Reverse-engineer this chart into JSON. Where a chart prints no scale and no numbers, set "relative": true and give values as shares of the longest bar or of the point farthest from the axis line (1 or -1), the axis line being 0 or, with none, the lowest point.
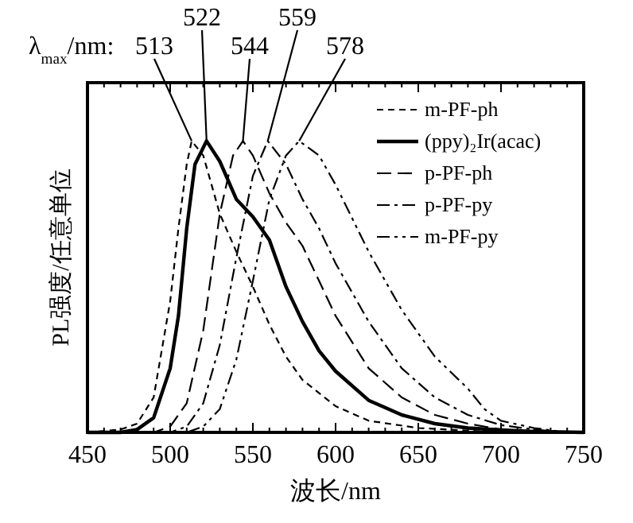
{
  "chart_data": {
    "type": "line",
    "relative": true,
    "xlabel": "波长/nm",
    "ylabel": "PL强度/任意单位",
    "xlim": [
      450,
      750
    ],
    "xticks": [
      450,
      500,
      550,
      600,
      650,
      700,
      750
    ],
    "legend": "top right",
    "annotations": [
      "λ$_{max}$/nm:",
      {
        "text": "513",
        "x": 513,
        "y": 1
      },
      {
        "text": "522",
        "x": 522,
        "y": 1
      },
      {
        "text": "544",
        "x": 544,
        "y": 1
      },
      {
        "text": "559",
        "x": 559,
        "y": 1
      },
      {
        "text": "578",
        "x": 578,
        "y": 1
      }
    ],
    "series": [
      {
        "name": "m-PF-ph",
        "color": "#000000",
        "line_style": "dashed",
        "x": [
          450,
          470,
          480,
          490,
          500,
          505,
          510,
          513,
          520,
          530,
          540,
          550,
          560,
          570,
          580,
          600,
          620,
          650,
          700,
          750
        ],
        "values": [
          0,
          0.01,
          0.03,
          0.12,
          0.45,
          0.7,
          0.92,
          1,
          0.95,
          0.75,
          0.62,
          0.5,
          0.37,
          0.26,
          0.18,
          0.09,
          0.04,
          0.015,
          0,
          0
        ]
      },
      {
        "name": "(ppy)₂Ir(acac)",
        "color": "#000000",
        "line_style": "solid",
        "x": [
          450,
          470,
          480,
          490,
          500,
          505,
          510,
          515,
          522,
          530,
          540,
          550,
          560,
          570,
          580,
          590,
          600,
          620,
          640,
          660,
          680,
          700,
          720,
          750
        ],
        "values": [
          0,
          0,
          0.01,
          0.05,
          0.22,
          0.4,
          0.7,
          0.92,
          1,
          0.93,
          0.8,
          0.74,
          0.66,
          0.5,
          0.38,
          0.28,
          0.21,
          0.11,
          0.06,
          0.03,
          0.015,
          0.008,
          0.003,
          0
        ]
      },
      {
        "name": "p-PF-ph",
        "color": "#000000",
        "line_style": "longdashed",
        "x": [
          450,
          490,
          500,
          510,
          520,
          530,
          538,
          544,
          550,
          560,
          570,
          580,
          590,
          600,
          620,
          640,
          660,
          680,
          700,
          720,
          750
        ],
        "values": [
          0,
          0,
          0.02,
          0.1,
          0.35,
          0.75,
          0.95,
          1,
          0.95,
          0.82,
          0.72,
          0.64,
          0.52,
          0.4,
          0.22,
          0.12,
          0.06,
          0.03,
          0.01,
          0,
          0
        ]
      },
      {
        "name": "p-PF-py",
        "color": "#000000",
        "line_style": "dashdot",
        "x": [
          450,
          500,
          510,
          520,
          530,
          540,
          550,
          559,
          570,
          580,
          590,
          600,
          620,
          640,
          660,
          680,
          700,
          720,
          740,
          750
        ],
        "values": [
          0,
          0,
          0.02,
          0.1,
          0.3,
          0.6,
          0.88,
          1,
          0.92,
          0.8,
          0.7,
          0.58,
          0.38,
          0.22,
          0.12,
          0.06,
          0.025,
          0.01,
          0,
          0
        ]
      },
      {
        "name": "m-PF-py",
        "color": "#000000",
        "line_style": "dashdotdot",
        "x": [
          450,
          510,
          520,
          530,
          540,
          550,
          560,
          570,
          578,
          590,
          600,
          620,
          640,
          660,
          680,
          690,
          700,
          720,
          740,
          750
        ],
        "values": [
          0,
          0,
          0.02,
          0.08,
          0.25,
          0.52,
          0.8,
          0.95,
          1,
          0.95,
          0.85,
          0.62,
          0.42,
          0.26,
          0.15,
          0.08,
          0.04,
          0.015,
          0,
          0
        ]
      }
    ]
  }
}
